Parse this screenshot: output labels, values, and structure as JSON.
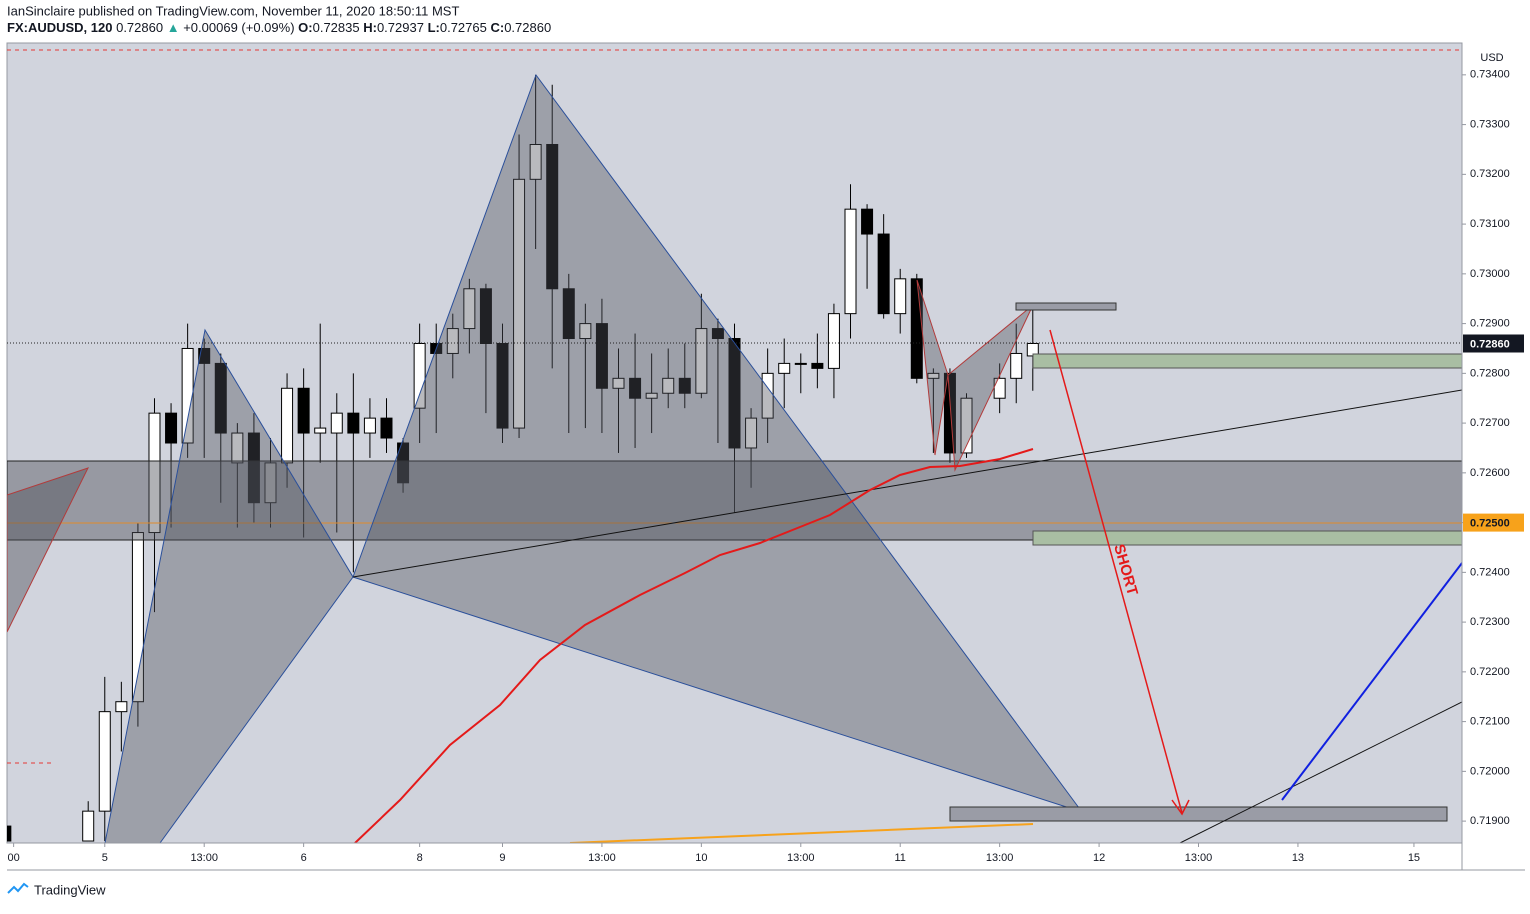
{
  "header": {
    "publisher": "IanSinclaire published on TradingView.com, November 11, 2020 18:50:11 MST"
  },
  "chart_data": {
    "type": "candlestick",
    "symbol": "FX:AUDUSD, 120",
    "last": "0.72860",
    "change_marker": "▲",
    "change": "+0.00069 (+0.09%)",
    "ohlc_labels": [
      "O:",
      "H:",
      "L:",
      "C:"
    ],
    "ohlc_values": [
      "0.72835",
      "0.72937",
      "0.72765",
      "0.72860"
    ],
    "currency": "USD",
    "annotation": "SHORT",
    "x": [
      0,
      5,
      6,
      7,
      8,
      9,
      10,
      11,
      12,
      13,
      14,
      15,
      16,
      17,
      18,
      19,
      20,
      21,
      22,
      23,
      24,
      25,
      26,
      27,
      28,
      29,
      30,
      31,
      32,
      33,
      34,
      35,
      36,
      37,
      38,
      39,
      40,
      41,
      42,
      43,
      44,
      45,
      46,
      47,
      48,
      49,
      50,
      51,
      52,
      53,
      54,
      55,
      56,
      57,
      58,
      60,
      61,
      62
    ],
    "open": [
      0.7189,
      0.7186,
      0.7192,
      0.7212,
      0.7214,
      0.7248,
      0.7272,
      0.7266,
      0.7285,
      0.7282,
      0.7262,
      0.7268,
      0.7254,
      0.7262,
      0.7277,
      0.7268,
      0.7268,
      0.7272,
      0.7268,
      0.7271,
      0.7266,
      0.7273,
      0.7286,
      0.7284,
      0.7289,
      0.7297,
      0.7286,
      0.7269,
      0.7319,
      0.7326,
      0.7297,
      0.7287,
      0.729,
      0.7277,
      0.7279,
      0.7275,
      0.7276,
      0.7279,
      0.7276,
      0.7289,
      0.7287,
      0.7265,
      0.7271,
      0.728,
      0.7282,
      0.7282,
      0.7281,
      0.7292,
      0.7313,
      0.7308,
      0.7292,
      0.7299,
      0.7279,
      0.728,
      0.7264,
      0.7275,
      0.7279,
      0.72835
    ],
    "high": [
      0.7189,
      0.7194,
      0.7219,
      0.7218,
      0.725,
      0.7275,
      0.7274,
      0.729,
      0.7287,
      0.7284,
      0.727,
      0.7272,
      0.7267,
      0.728,
      0.7281,
      0.729,
      0.7276,
      0.728,
      0.7275,
      0.7275,
      0.7267,
      0.729,
      0.729,
      0.7292,
      0.7299,
      0.7298,
      0.729,
      0.7328,
      0.734,
      0.7338,
      0.73,
      0.7294,
      0.7295,
      0.7285,
      0.7288,
      0.7284,
      0.7285,
      0.7286,
      0.7296,
      0.7291,
      0.729,
      0.7273,
      0.7285,
      0.7287,
      0.7284,
      0.7288,
      0.7294,
      0.7318,
      0.7314,
      0.7312,
      0.7301,
      0.73,
      0.7281,
      0.7281,
      0.7276,
      0.7282,
      0.729,
      0.72937
    ],
    "low": [
      0.71856,
      0.7186,
      0.7186,
      0.7204,
      0.7209,
      0.7232,
      0.7249,
      0.7263,
      0.7263,
      0.7254,
      0.7249,
      0.725,
      0.7249,
      0.7257,
      0.7247,
      0.7262,
      0.7248,
      0.724,
      0.7263,
      0.7264,
      0.7256,
      0.7266,
      0.7268,
      0.7279,
      0.7284,
      0.7272,
      0.7266,
      0.7267,
      0.7305,
      0.7281,
      0.7268,
      0.7269,
      0.7268,
      0.7264,
      0.7265,
      0.7268,
      0.7273,
      0.7273,
      0.7275,
      0.7266,
      0.7252,
      0.7257,
      0.7266,
      0.7273,
      0.7276,
      0.7277,
      0.7275,
      0.7287,
      0.7297,
      0.7291,
      0.7288,
      0.7278,
      0.7264,
      0.7262,
      0.7263,
      0.7272,
      0.7274,
      0.72765
    ],
    "close": [
      0.7186,
      0.7192,
      0.7212,
      0.7214,
      0.7248,
      0.7272,
      0.7266,
      0.7285,
      0.7282,
      0.7268,
      0.7268,
      0.7254,
      0.7262,
      0.7277,
      0.7268,
      0.7269,
      0.7272,
      0.7268,
      0.7271,
      0.7267,
      0.7258,
      0.7286,
      0.7284,
      0.7289,
      0.7297,
      0.7286,
      0.7269,
      0.7319,
      0.7326,
      0.7297,
      0.7287,
      0.729,
      0.7277,
      0.7279,
      0.7275,
      0.7276,
      0.7279,
      0.7276,
      0.7289,
      0.7287,
      0.7265,
      0.7271,
      0.728,
      0.7282,
      0.7282,
      0.7281,
      0.7292,
      0.7313,
      0.7308,
      0.7292,
      0.7299,
      0.7279,
      0.728,
      0.7264,
      0.7275,
      0.7279,
      0.7284,
      0.7286
    ],
    "up_color": "#ffffff",
    "down_color": "#000000",
    "xlim": [
      0.1,
      87.9
    ],
    "xticks": [
      {
        "value": 0.5,
        "label": "00"
      },
      {
        "value": 6,
        "label": "5"
      },
      {
        "value": 12,
        "label": "13:00"
      },
      {
        "value": 18,
        "label": "6"
      },
      {
        "value": 25,
        "label": "8"
      },
      {
        "value": 30,
        "label": "9"
      },
      {
        "value": 36,
        "label": "13:00"
      },
      {
        "value": 42,
        "label": "10"
      },
      {
        "value": 48,
        "label": "13:00"
      },
      {
        "value": 54,
        "label": "11"
      },
      {
        "value": 60,
        "label": "13:00"
      },
      {
        "value": 66,
        "label": "12"
      },
      {
        "value": 72,
        "label": "13:00"
      },
      {
        "value": 78,
        "label": "13"
      },
      {
        "value": 85,
        "label": "15"
      }
    ],
    "ylim": [
      0.71856,
      0.73464
    ],
    "yticks": [
      {
        "value": 0.734,
        "label": "0.73400"
      },
      {
        "value": 0.733,
        "label": "0.73300"
      },
      {
        "value": 0.732,
        "label": "0.73200"
      },
      {
        "value": 0.731,
        "label": "0.73100"
      },
      {
        "value": 0.73,
        "label": "0.73000"
      },
      {
        "value": 0.729,
        "label": "0.72900"
      },
      {
        "value": 0.728,
        "label": "0.72800"
      },
      {
        "value": 0.727,
        "label": "0.72700"
      },
      {
        "value": 0.726,
        "label": "0.72600"
      },
      {
        "value": 0.725,
        "label": "0.72500"
      },
      {
        "value": 0.724,
        "label": "0.72400"
      },
      {
        "value": 0.723,
        "label": "0.72300"
      },
      {
        "value": 0.722,
        "label": "0.72200"
      },
      {
        "value": 0.721,
        "label": "0.72100"
      },
      {
        "value": 0.72,
        "label": "0.72000"
      },
      {
        "value": 0.719,
        "label": "0.71900"
      }
    ],
    "price_tags": [
      {
        "value": 0.7286,
        "label": "0.72860",
        "color": "#131722"
      },
      {
        "value": 0.725,
        "label": "0.72500",
        "color": "#f7a21b"
      }
    ]
  },
  "footer": {
    "brand": "TradingView"
  }
}
